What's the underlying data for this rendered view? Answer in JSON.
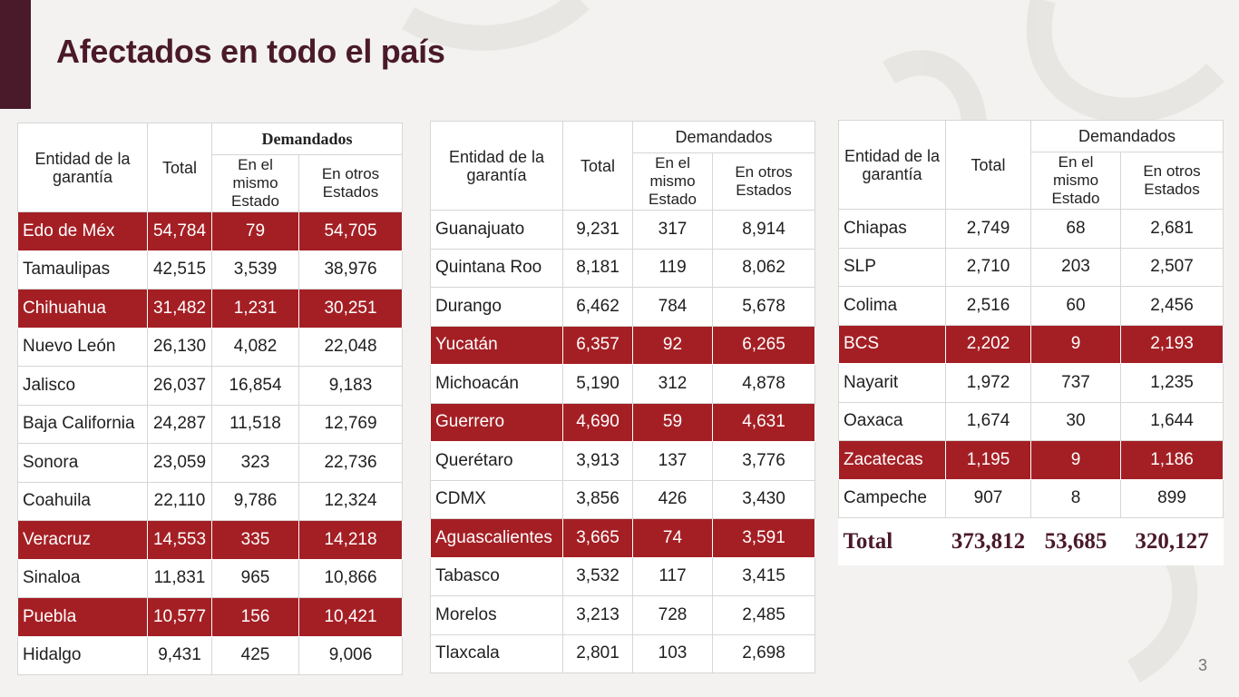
{
  "title": "Afectados en todo el país",
  "page_number": "3",
  "colors": {
    "highlight": "#a41f24",
    "title": "#4a1a2a"
  },
  "headers": {
    "state": "Entidad de la garantía",
    "total": "Total",
    "demanded": "Demandados",
    "same_state": "En el mismo Estado",
    "other_states": "En otros Estados"
  },
  "tables": [
    {
      "rows": [
        {
          "state": "Edo de Méx",
          "total": "54,784",
          "same": "79",
          "other": "54,705",
          "highlight": true
        },
        {
          "state": "Tamaulipas",
          "total": "42,515",
          "same": "3,539",
          "other": "38,976",
          "highlight": false
        },
        {
          "state": "Chihuahua",
          "total": "31,482",
          "same": "1,231",
          "other": "30,251",
          "highlight": true
        },
        {
          "state": "Nuevo León",
          "total": "26,130",
          "same": "4,082",
          "other": "22,048",
          "highlight": false
        },
        {
          "state": "Jalisco",
          "total": "26,037",
          "same": "16,854",
          "other": "9,183",
          "highlight": false
        },
        {
          "state": "Baja California",
          "total": "24,287",
          "same": "11,518",
          "other": "12,769",
          "highlight": false
        },
        {
          "state": "Sonora",
          "total": "23,059",
          "same": "323",
          "other": "22,736",
          "highlight": false
        },
        {
          "state": "Coahuila",
          "total": "22,110",
          "same": "9,786",
          "other": "12,324",
          "highlight": false
        },
        {
          "state": "Veracruz",
          "total": "14,553",
          "same": "335",
          "other": "14,218",
          "highlight": true
        },
        {
          "state": "Sinaloa",
          "total": "11,831",
          "same": "965",
          "other": "10,866",
          "highlight": false
        },
        {
          "state": "Puebla",
          "total": "10,577",
          "same": "156",
          "other": "10,421",
          "highlight": true
        },
        {
          "state": "Hidalgo",
          "total": "9,431",
          "same": "425",
          "other": "9,006",
          "highlight": false
        }
      ]
    },
    {
      "rows": [
        {
          "state": "Guanajuato",
          "total": "9,231",
          "same": "317",
          "other": "8,914",
          "highlight": false
        },
        {
          "state": "Quintana Roo",
          "total": "8,181",
          "same": "119",
          "other": "8,062",
          "highlight": false
        },
        {
          "state": "Durango",
          "total": "6,462",
          "same": "784",
          "other": "5,678",
          "highlight": false
        },
        {
          "state": "Yucatán",
          "total": "6,357",
          "same": "92",
          "other": "6,265",
          "highlight": true
        },
        {
          "state": "Michoacán",
          "total": "5,190",
          "same": "312",
          "other": "4,878",
          "highlight": false
        },
        {
          "state": "Guerrero",
          "total": "4,690",
          "same": "59",
          "other": "4,631",
          "highlight": true
        },
        {
          "state": "Querétaro",
          "total": "3,913",
          "same": "137",
          "other": "3,776",
          "highlight": false
        },
        {
          "state": "CDMX",
          "total": "3,856",
          "same": "426",
          "other": "3,430",
          "highlight": false
        },
        {
          "state": "Aguascalientes",
          "total": "3,665",
          "same": "74",
          "other": "3,591",
          "highlight": true
        },
        {
          "state": "Tabasco",
          "total": "3,532",
          "same": "117",
          "other": "3,415",
          "highlight": false
        },
        {
          "state": "Morelos",
          "total": "3,213",
          "same": "728",
          "other": "2,485",
          "highlight": false
        },
        {
          "state": "Tlaxcala",
          "total": "2,801",
          "same": "103",
          "other": "2,698",
          "highlight": false
        }
      ]
    },
    {
      "rows": [
        {
          "state": "Chiapas",
          "total": "2,749",
          "same": "68",
          "other": "2,681",
          "highlight": false
        },
        {
          "state": "SLP",
          "total": "2,710",
          "same": "203",
          "other": "2,507",
          "highlight": false
        },
        {
          "state": "Colima",
          "total": "2,516",
          "same": "60",
          "other": "2,456",
          "highlight": false
        },
        {
          "state": "BCS",
          "total": "2,202",
          "same": "9",
          "other": "2,193",
          "highlight": true
        },
        {
          "state": "Nayarit",
          "total": "1,972",
          "same": "737",
          "other": "1,235",
          "highlight": false
        },
        {
          "state": "Oaxaca",
          "total": "1,674",
          "same": "30",
          "other": "1,644",
          "highlight": false
        },
        {
          "state": "Zacatecas",
          "total": "1,195",
          "same": "9",
          "other": "1,186",
          "highlight": true
        },
        {
          "state": "Campeche",
          "total": "907",
          "same": "8",
          "other": "899",
          "highlight": false
        }
      ],
      "total_row": {
        "label": "Total",
        "total": "373,812",
        "same": "53,685",
        "other": "320,127"
      }
    }
  ]
}
